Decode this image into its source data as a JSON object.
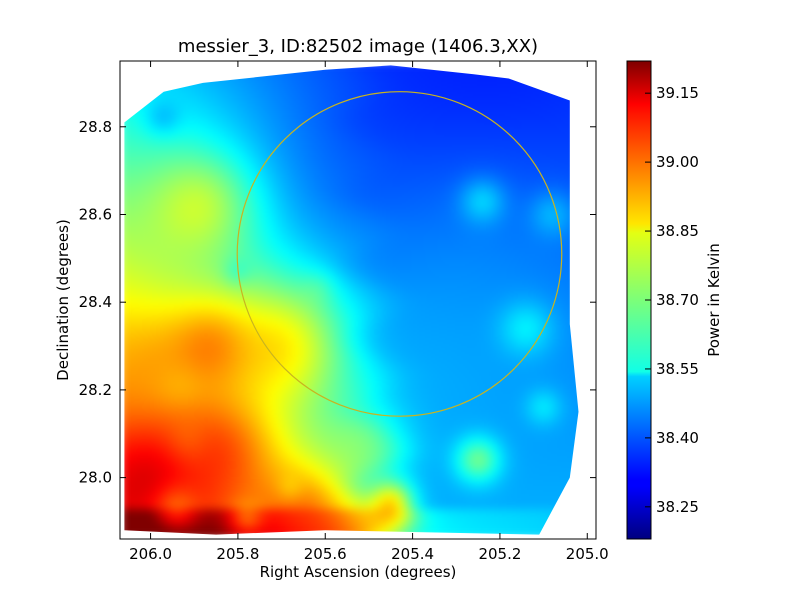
{
  "chart_data": {
    "type": "heatmap",
    "title": "messier_3, ID:82502 image (1406.3,XX)",
    "xlabel": "Right Ascension (degrees)",
    "ylabel": "Declination (degrees)",
    "xlim": [
      206.07,
      204.98
    ],
    "ylim": [
      27.86,
      28.95
    ],
    "x_ticks": [
      206.0,
      205.8,
      205.6,
      205.4,
      205.2,
      205.0
    ],
    "x_tick_labels": [
      "206.0",
      "205.8",
      "205.6",
      "205.4",
      "205.2",
      "205.0"
    ],
    "y_ticks": [
      28.0,
      28.2,
      28.4,
      28.6,
      28.8
    ],
    "y_tick_labels": [
      "28.0",
      "28.2",
      "28.4",
      "28.6",
      "28.8"
    ],
    "colorbar": {
      "label": "Power in Kelvin",
      "colormap": "jet",
      "range": [
        38.18,
        39.22
      ],
      "ticks": [
        38.25,
        38.4,
        38.55,
        38.7,
        38.85,
        39.0,
        39.15
      ],
      "tick_labels": [
        "38.25",
        "38.40",
        "38.55",
        "38.70",
        "38.85",
        "39.00",
        "39.15"
      ]
    },
    "circle": {
      "center_ra": 205.43,
      "center_dec": 28.51,
      "radius_deg": 0.37,
      "color": "#c8b420"
    },
    "field_outline_ra_dec": [
      [
        206.06,
        28.81
      ],
      [
        205.97,
        28.88
      ],
      [
        205.88,
        28.9
      ],
      [
        205.6,
        28.93
      ],
      [
        205.45,
        28.94
      ],
      [
        205.26,
        28.92
      ],
      [
        205.18,
        28.91
      ],
      [
        205.04,
        28.86
      ],
      [
        205.04,
        28.35
      ],
      [
        205.02,
        28.15
      ],
      [
        205.04,
        28.0
      ],
      [
        205.11,
        27.87
      ],
      [
        205.6,
        27.88
      ],
      [
        205.85,
        27.87
      ],
      [
        206.06,
        27.88
      ]
    ],
    "sources": [
      {
        "ra": 205.52,
        "dec": 28.7,
        "value": 38.45,
        "sigma": 0.28
      },
      {
        "ra": 205.3,
        "dec": 28.73,
        "value": 38.32,
        "sigma": 0.4
      },
      {
        "ra": 205.24,
        "dec": 28.82,
        "value": 38.3,
        "sigma": 0.3
      },
      {
        "ra": 205.24,
        "dec": 28.5,
        "value": 38.45,
        "sigma": 0.35
      },
      {
        "ra": 205.24,
        "dec": 28.25,
        "value": 38.47,
        "sigma": 0.35
      },
      {
        "ra": 205.4,
        "dec": 28.2,
        "value": 38.5,
        "sigma": 0.3
      },
      {
        "ra": 205.24,
        "dec": 28.63,
        "value": 38.6,
        "sigma": 0.05
      },
      {
        "ra": 205.08,
        "dec": 28.6,
        "value": 38.55,
        "sigma": 0.05
      },
      {
        "ra": 205.14,
        "dec": 28.34,
        "value": 38.62,
        "sigma": 0.06
      },
      {
        "ra": 205.1,
        "dec": 28.16,
        "value": 38.6,
        "sigma": 0.04
      },
      {
        "ra": 205.25,
        "dec": 28.04,
        "value": 38.82,
        "sigma": 0.05
      },
      {
        "ra": 205.97,
        "dec": 28.82,
        "value": 38.45,
        "sigma": 0.04
      },
      {
        "ra": 205.8,
        "dec": 28.47,
        "value": 38.52,
        "sigma": 0.03
      },
      {
        "ra": 205.62,
        "dec": 28.43,
        "value": 38.62,
        "sigma": 0.04
      },
      {
        "ra": 205.89,
        "dec": 28.62,
        "value": 38.88,
        "sigma": 0.12
      },
      {
        "ra": 205.93,
        "dec": 28.22,
        "value": 38.75,
        "sigma": 0.06
      },
      {
        "ra": 205.91,
        "dec": 28.08,
        "value": 38.78,
        "sigma": 0.05
      },
      {
        "ra": 205.52,
        "dec": 28.08,
        "value": 38.75,
        "sigma": 0.1
      },
      {
        "ra": 206.0,
        "dec": 28.25,
        "value": 38.95,
        "sigma": 0.12
      },
      {
        "ra": 205.86,
        "dec": 28.3,
        "value": 39.05,
        "sigma": 0.1
      },
      {
        "ra": 205.7,
        "dec": 28.3,
        "value": 38.98,
        "sigma": 0.14
      },
      {
        "ra": 206.0,
        "dec": 28.0,
        "value": 39.2,
        "sigma": 0.12
      },
      {
        "ra": 205.85,
        "dec": 28.06,
        "value": 39.1,
        "sigma": 0.12
      },
      {
        "ra": 205.45,
        "dec": 27.94,
        "value": 39.08,
        "sigma": 0.05
      },
      {
        "ra": 205.65,
        "dec": 27.92,
        "value": 39.05,
        "sigma": 0.1
      },
      {
        "ra": 205.94,
        "dec": 27.93,
        "value": 38.92,
        "sigma": 0.05
      },
      {
        "ra": 205.78,
        "dec": 27.91,
        "value": 38.88,
        "sigma": 0.04
      },
      {
        "ra": 205.68,
        "dec": 27.98,
        "value": 38.85,
        "sigma": 0.03
      }
    ]
  }
}
